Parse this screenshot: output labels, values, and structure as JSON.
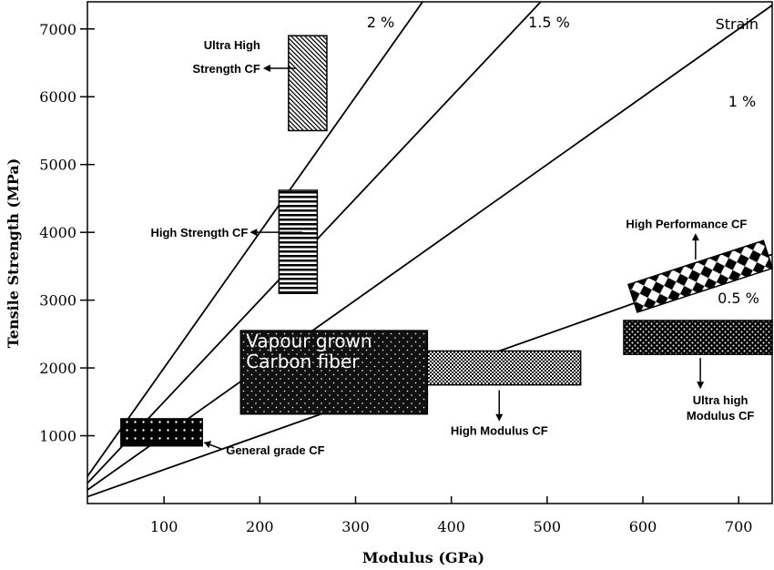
{
  "chart_data": {
    "type": "scatter",
    "xlabel": "Modulus (GPa)",
    "ylabel": "Tensile Strength (MPa)",
    "xlim": [
      20,
      735
    ],
    "ylim": [
      0,
      7400
    ],
    "xticks": [
      100,
      200,
      300,
      400,
      500,
      600,
      700
    ],
    "yticks": [
      1000,
      2000,
      3000,
      4000,
      5000,
      6000,
      7000
    ],
    "legend_title": "Strain",
    "strain_lines": [
      {
        "label": "2 %",
        "strain_pct": 2
      },
      {
        "label": "1.5 %",
        "strain_pct": 1.5
      },
      {
        "label": "1 %",
        "strain_pct": 1
      },
      {
        "label": "0.5 %",
        "strain_pct": 0.5
      }
    ],
    "regions": [
      {
        "name": "General grade CF",
        "modulus": [
          55,
          140
        ],
        "strength": [
          850,
          1250
        ],
        "pattern": "dots"
      },
      {
        "name": "Vapour grown Carbon fiber",
        "modulus": [
          180,
          375
        ],
        "strength": [
          1320,
          2550
        ],
        "pattern": "fine-dots"
      },
      {
        "name": "High Modulus CF",
        "modulus": [
          375,
          535
        ],
        "strength": [
          1750,
          2250
        ],
        "pattern": "checker"
      },
      {
        "name": "Ultra high Modulus CF",
        "modulus": [
          580,
          735
        ],
        "strength": [
          2200,
          2700
        ],
        "pattern": "speckle"
      },
      {
        "name": "High Strength CF",
        "modulus": [
          220,
          260
        ],
        "strength": [
          3100,
          4620
        ],
        "pattern": "horizontal-stripes"
      },
      {
        "name": "Ultra High Strength CF",
        "modulus": [
          230,
          270
        ],
        "strength": [
          5500,
          6900
        ],
        "pattern": "diagonal-hatch"
      },
      {
        "name": "High Performance CF",
        "modulus": [
          590,
          730
        ],
        "strength": [
          3000,
          3700
        ],
        "pattern": "diamond-checker",
        "rotated": true
      }
    ]
  },
  "colors": {
    "axis": "#000000",
    "background": "#ffffff",
    "region_fill": "#000000",
    "vgcf_text": "#ffffff"
  }
}
